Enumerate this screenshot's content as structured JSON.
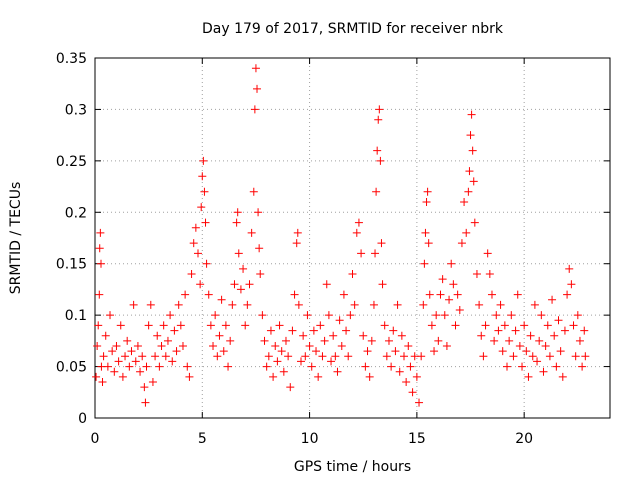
{
  "chart_data": {
    "type": "scatter",
    "title": "Day 179 of 2017, SRMTID for receiver nbrk",
    "xlabel": "GPS time / hours",
    "ylabel": "SRMTID / TECUs",
    "xlim": [
      0,
      24
    ],
    "ylim": [
      0,
      0.35
    ],
    "xticks": [
      0,
      5,
      10,
      15,
      20
    ],
    "xtick_labels": [
      "0",
      "5",
      "10",
      "15",
      "20"
    ],
    "yticks": [
      0,
      0.05,
      0.1,
      0.15,
      0.2,
      0.25,
      0.3,
      0.35
    ],
    "ytick_labels": [
      "0",
      "0.05",
      "0.1",
      "0.15",
      "0.2",
      "0.25",
      "0.3",
      "0.35"
    ],
    "grid": true,
    "marker": "+",
    "color": "#ff0000",
    "series": [
      {
        "name": "SRMTID",
        "points": [
          [
            0.05,
            0.04
          ],
          [
            0.1,
            0.07
          ],
          [
            0.15,
            0.09
          ],
          [
            0.2,
            0.12
          ],
          [
            0.22,
            0.165
          ],
          [
            0.25,
            0.18
          ],
          [
            0.28,
            0.15
          ],
          [
            0.3,
            0.05
          ],
          [
            0.35,
            0.035
          ],
          [
            0.4,
            0.06
          ],
          [
            0.5,
            0.08
          ],
          [
            0.6,
            0.05
          ],
          [
            0.7,
            0.1
          ],
          [
            0.8,
            0.065
          ],
          [
            0.9,
            0.045
          ],
          [
            1.0,
            0.07
          ],
          [
            1.1,
            0.055
          ],
          [
            1.2,
            0.09
          ],
          [
            1.3,
            0.04
          ],
          [
            1.4,
            0.06
          ],
          [
            1.5,
            0.075
          ],
          [
            1.6,
            0.05
          ],
          [
            1.7,
            0.065
          ],
          [
            1.8,
            0.11
          ],
          [
            1.9,
            0.055
          ],
          [
            2.0,
            0.07
          ],
          [
            2.1,
            0.045
          ],
          [
            2.2,
            0.06
          ],
          [
            2.3,
            0.03
          ],
          [
            2.35,
            0.015
          ],
          [
            2.4,
            0.05
          ],
          [
            2.5,
            0.09
          ],
          [
            2.6,
            0.11
          ],
          [
            2.7,
            0.035
          ],
          [
            2.8,
            0.06
          ],
          [
            2.9,
            0.08
          ],
          [
            3.0,
            0.05
          ],
          [
            3.1,
            0.07
          ],
          [
            3.2,
            0.09
          ],
          [
            3.3,
            0.06
          ],
          [
            3.4,
            0.075
          ],
          [
            3.5,
            0.1
          ],
          [
            3.6,
            0.055
          ],
          [
            3.7,
            0.085
          ],
          [
            3.8,
            0.065
          ],
          [
            3.9,
            0.11
          ],
          [
            4.0,
            0.09
          ],
          [
            4.1,
            0.07
          ],
          [
            4.2,
            0.12
          ],
          [
            4.3,
            0.05
          ],
          [
            4.4,
            0.04
          ],
          [
            4.5,
            0.14
          ],
          [
            4.6,
            0.17
          ],
          [
            4.7,
            0.185
          ],
          [
            4.8,
            0.16
          ],
          [
            4.9,
            0.13
          ],
          [
            4.95,
            0.205
          ],
          [
            5.0,
            0.235
          ],
          [
            5.05,
            0.25
          ],
          [
            5.1,
            0.22
          ],
          [
            5.15,
            0.19
          ],
          [
            5.2,
            0.15
          ],
          [
            5.3,
            0.12
          ],
          [
            5.4,
            0.09
          ],
          [
            5.5,
            0.07
          ],
          [
            5.6,
            0.1
          ],
          [
            5.7,
            0.06
          ],
          [
            5.8,
            0.08
          ],
          [
            5.9,
            0.115
          ],
          [
            6.0,
            0.065
          ],
          [
            6.1,
            0.09
          ],
          [
            6.2,
            0.05
          ],
          [
            6.3,
            0.075
          ],
          [
            6.4,
            0.11
          ],
          [
            6.5,
            0.13
          ],
          [
            6.6,
            0.19
          ],
          [
            6.65,
            0.2
          ],
          [
            6.7,
            0.16
          ],
          [
            6.8,
            0.125
          ],
          [
            6.9,
            0.145
          ],
          [
            7.0,
            0.09
          ],
          [
            7.1,
            0.11
          ],
          [
            7.2,
            0.13
          ],
          [
            7.3,
            0.18
          ],
          [
            7.4,
            0.22
          ],
          [
            7.45,
            0.3
          ],
          [
            7.5,
            0.34
          ],
          [
            7.55,
            0.32
          ],
          [
            7.6,
            0.2
          ],
          [
            7.65,
            0.165
          ],
          [
            7.7,
            0.14
          ],
          [
            7.8,
            0.1
          ],
          [
            7.9,
            0.075
          ],
          [
            8.0,
            0.05
          ],
          [
            8.1,
            0.06
          ],
          [
            8.2,
            0.085
          ],
          [
            8.3,
            0.04
          ],
          [
            8.4,
            0.07
          ],
          [
            8.5,
            0.055
          ],
          [
            8.6,
            0.09
          ],
          [
            8.7,
            0.065
          ],
          [
            8.8,
            0.045
          ],
          [
            8.9,
            0.075
          ],
          [
            9.0,
            0.06
          ],
          [
            9.1,
            0.03
          ],
          [
            9.2,
            0.085
          ],
          [
            9.3,
            0.12
          ],
          [
            9.4,
            0.17
          ],
          [
            9.45,
            0.18
          ],
          [
            9.5,
            0.11
          ],
          [
            9.6,
            0.055
          ],
          [
            9.7,
            0.08
          ],
          [
            9.8,
            0.06
          ],
          [
            9.9,
            0.1
          ],
          [
            10.0,
            0.07
          ],
          [
            10.1,
            0.05
          ],
          [
            10.2,
            0.085
          ],
          [
            10.3,
            0.065
          ],
          [
            10.4,
            0.04
          ],
          [
            10.5,
            0.09
          ],
          [
            10.6,
            0.06
          ],
          [
            10.7,
            0.075
          ],
          [
            10.8,
            0.13
          ],
          [
            10.9,
            0.1
          ],
          [
            11.0,
            0.055
          ],
          [
            11.1,
            0.08
          ],
          [
            11.2,
            0.06
          ],
          [
            11.3,
            0.045
          ],
          [
            11.4,
            0.095
          ],
          [
            11.5,
            0.07
          ],
          [
            11.6,
            0.12
          ],
          [
            11.7,
            0.085
          ],
          [
            11.8,
            0.06
          ],
          [
            11.9,
            0.1
          ],
          [
            12.0,
            0.14
          ],
          [
            12.1,
            0.11
          ],
          [
            12.2,
            0.18
          ],
          [
            12.3,
            0.19
          ],
          [
            12.4,
            0.16
          ],
          [
            12.5,
            0.08
          ],
          [
            12.6,
            0.05
          ],
          [
            12.7,
            0.065
          ],
          [
            12.8,
            0.04
          ],
          [
            12.9,
            0.075
          ],
          [
            13.0,
            0.11
          ],
          [
            13.05,
            0.16
          ],
          [
            13.1,
            0.22
          ],
          [
            13.15,
            0.26
          ],
          [
            13.2,
            0.29
          ],
          [
            13.25,
            0.3
          ],
          [
            13.3,
            0.25
          ],
          [
            13.35,
            0.17
          ],
          [
            13.4,
            0.13
          ],
          [
            13.5,
            0.09
          ],
          [
            13.6,
            0.06
          ],
          [
            13.7,
            0.075
          ],
          [
            13.8,
            0.05
          ],
          [
            13.9,
            0.085
          ],
          [
            14.0,
            0.065
          ],
          [
            14.1,
            0.11
          ],
          [
            14.2,
            0.045
          ],
          [
            14.3,
            0.08
          ],
          [
            14.4,
            0.06
          ],
          [
            14.5,
            0.035
          ],
          [
            14.6,
            0.07
          ],
          [
            14.7,
            0.05
          ],
          [
            14.8,
            0.025
          ],
          [
            14.9,
            0.06
          ],
          [
            15.0,
            0.04
          ],
          [
            15.1,
            0.015
          ],
          [
            15.2,
            0.06
          ],
          [
            15.3,
            0.11
          ],
          [
            15.35,
            0.15
          ],
          [
            15.4,
            0.18
          ],
          [
            15.45,
            0.21
          ],
          [
            15.5,
            0.22
          ],
          [
            15.55,
            0.17
          ],
          [
            15.6,
            0.12
          ],
          [
            15.7,
            0.09
          ],
          [
            15.8,
            0.065
          ],
          [
            15.9,
            0.1
          ],
          [
            16.0,
            0.075
          ],
          [
            16.1,
            0.12
          ],
          [
            16.2,
            0.135
          ],
          [
            16.3,
            0.1
          ],
          [
            16.4,
            0.07
          ],
          [
            16.5,
            0.115
          ],
          [
            16.6,
            0.15
          ],
          [
            16.7,
            0.13
          ],
          [
            16.8,
            0.09
          ],
          [
            16.9,
            0.12
          ],
          [
            17.0,
            0.105
          ],
          [
            17.1,
            0.17
          ],
          [
            17.2,
            0.21
          ],
          [
            17.3,
            0.18
          ],
          [
            17.4,
            0.22
          ],
          [
            17.45,
            0.24
          ],
          [
            17.5,
            0.275
          ],
          [
            17.55,
            0.295
          ],
          [
            17.6,
            0.26
          ],
          [
            17.65,
            0.23
          ],
          [
            17.7,
            0.19
          ],
          [
            17.8,
            0.14
          ],
          [
            17.9,
            0.11
          ],
          [
            18.0,
            0.08
          ],
          [
            18.1,
            0.06
          ],
          [
            18.2,
            0.09
          ],
          [
            18.3,
            0.16
          ],
          [
            18.4,
            0.14
          ],
          [
            18.5,
            0.12
          ],
          [
            18.6,
            0.075
          ],
          [
            18.7,
            0.1
          ],
          [
            18.8,
            0.085
          ],
          [
            18.9,
            0.11
          ],
          [
            19.0,
            0.065
          ],
          [
            19.1,
            0.09
          ],
          [
            19.2,
            0.05
          ],
          [
            19.3,
            0.075
          ],
          [
            19.4,
            0.1
          ],
          [
            19.5,
            0.06
          ],
          [
            19.6,
            0.085
          ],
          [
            19.7,
            0.12
          ],
          [
            19.8,
            0.07
          ],
          [
            19.9,
            0.05
          ],
          [
            20.0,
            0.09
          ],
          [
            20.1,
            0.065
          ],
          [
            20.2,
            0.04
          ],
          [
            20.3,
            0.08
          ],
          [
            20.4,
            0.06
          ],
          [
            20.5,
            0.11
          ],
          [
            20.6,
            0.055
          ],
          [
            20.7,
            0.075
          ],
          [
            20.8,
            0.1
          ],
          [
            20.9,
            0.045
          ],
          [
            21.0,
            0.07
          ],
          [
            21.1,
            0.09
          ],
          [
            21.2,
            0.06
          ],
          [
            21.3,
            0.115
          ],
          [
            21.4,
            0.08
          ],
          [
            21.5,
            0.05
          ],
          [
            21.6,
            0.095
          ],
          [
            21.7,
            0.065
          ],
          [
            21.8,
            0.04
          ],
          [
            21.9,
            0.085
          ],
          [
            22.0,
            0.12
          ],
          [
            22.1,
            0.145
          ],
          [
            22.2,
            0.13
          ],
          [
            22.3,
            0.09
          ],
          [
            22.4,
            0.06
          ],
          [
            22.5,
            0.1
          ],
          [
            22.6,
            0.075
          ],
          [
            22.7,
            0.05
          ],
          [
            22.8,
            0.085
          ],
          [
            22.85,
            0.06
          ]
        ]
      }
    ]
  }
}
